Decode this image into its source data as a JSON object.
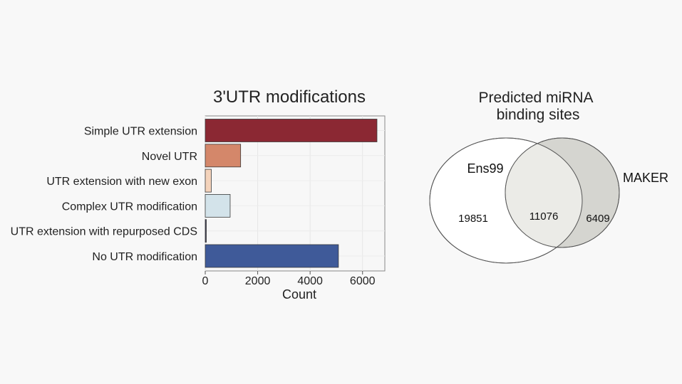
{
  "chart_data": [
    {
      "type": "bar",
      "orientation": "horizontal",
      "title": "3'UTR modifications",
      "xlabel": "Count",
      "ylabel": "",
      "categories": [
        "Simple UTR extension",
        "Novel UTR",
        "UTR extension with new exon",
        "Complex UTR modification",
        "UTR extension with repurposed CDS",
        "No UTR modification"
      ],
      "values": [
        6550,
        1350,
        230,
        950,
        40,
        5080
      ],
      "colors": [
        "#8b2833",
        "#d4876a",
        "#f4d3bb",
        "#d3e3ea",
        "#3e3e58",
        "#3f5a99"
      ],
      "xticks": [
        0,
        2000,
        4000,
        6000
      ],
      "xtick_labels": [
        "0",
        "2000",
        "4000",
        "6000"
      ],
      "xlim": [
        0,
        6850
      ],
      "grid": true
    },
    {
      "type": "venn",
      "title_lines": [
        "Predicted miRNA",
        "binding sites"
      ],
      "sets": [
        {
          "name": "Ens99",
          "only": 19851,
          "fill": "#ffffff"
        },
        {
          "name": "MAKER",
          "only": 6409,
          "fill": "#d5d5d0"
        }
      ],
      "intersection": 11076,
      "intersection_fill": "#ebebe7"
    }
  ]
}
